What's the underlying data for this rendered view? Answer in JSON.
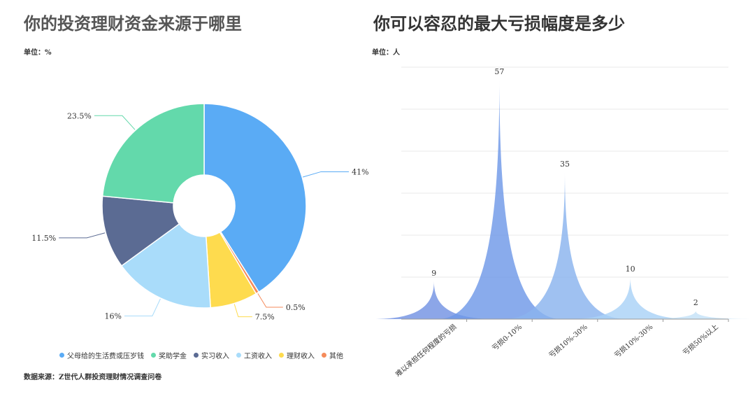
{
  "chart_data": [
    {
      "type": "pie",
      "title": "你的投资理财资金来源于哪里",
      "unit_label": "单位：%",
      "slices": [
        {
          "label": "父母给的生活费或压岁钱",
          "value": 41,
          "value_label": "41%",
          "color": "#5aabf5"
        },
        {
          "label": "其他",
          "value": 0.5,
          "value_label": "0.5%",
          "color": "#f58b5b"
        },
        {
          "label": "理财收入",
          "value": 7.5,
          "value_label": "7.5%",
          "color": "#fedb4e"
        },
        {
          "label": "工资收入",
          "value": 16,
          "value_label": "16%",
          "color": "#a9dcfa"
        },
        {
          "label": "实习收入",
          "value": 11.5,
          "value_label": "11.5%",
          "color": "#5b6b93"
        },
        {
          "label": "奖助学金",
          "value": 23.5,
          "value_label": "23.5%",
          "color": "#63d9ab"
        }
      ],
      "legend": [
        {
          "label": "父母给的生活费或压岁钱",
          "color": "#5aabf5"
        },
        {
          "label": "奖助学金",
          "color": "#63d9ab"
        },
        {
          "label": "实习收入",
          "color": "#5b6b93"
        },
        {
          "label": "工资收入",
          "color": "#a9dcfa"
        },
        {
          "label": "理财收入",
          "color": "#fedb4e"
        },
        {
          "label": "其他",
          "color": "#f58b5b"
        }
      ],
      "legend_position": "bottom",
      "source": "数据来源：Z世代人群投资理财情况调查问卷"
    },
    {
      "type": "area",
      "title": "你可以容忍的最大亏损幅度是多少",
      "unit_label": "单位：人",
      "categories": [
        "难以承担任何程度的亏损",
        "亏损0-10%",
        "亏损10%-30%",
        "亏损10%-30%",
        "亏损50%以上"
      ],
      "values": [
        9,
        57,
        35,
        10,
        2
      ],
      "colors": [
        "#7393e3",
        "#6f98e8",
        "#8ab3ee",
        "#a9d2f6",
        "#c4e2f8"
      ],
      "ylim": [
        0,
        60
      ],
      "grid": true,
      "legend": false
    }
  ]
}
